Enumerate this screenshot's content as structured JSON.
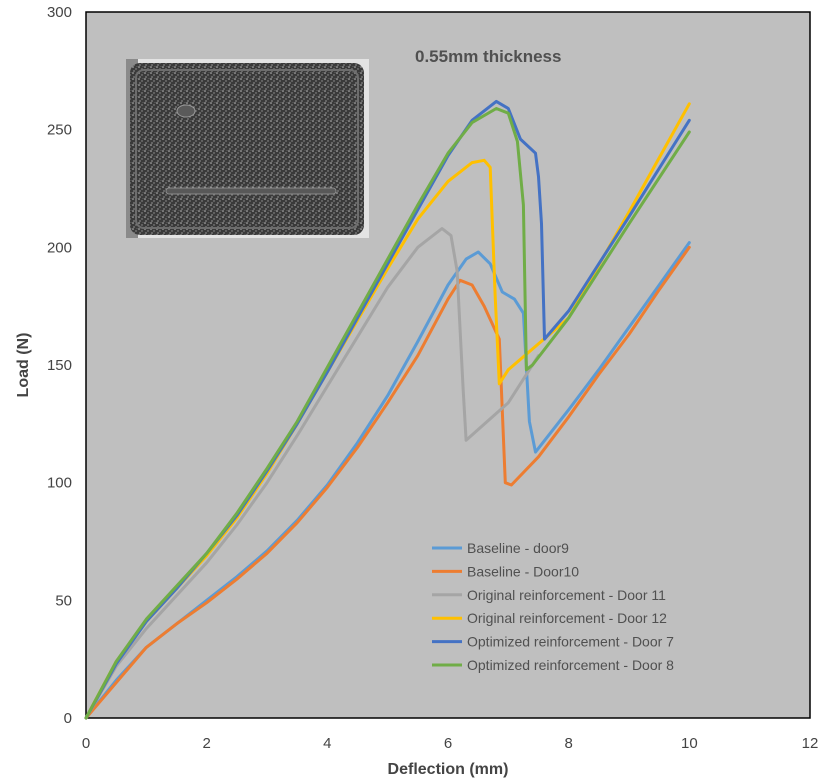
{
  "chart_data": {
    "type": "line",
    "title": "",
    "annotation": "0.55mm thickness",
    "xlabel": "Deflection (mm)",
    "ylabel": "Load (N)",
    "xlim": [
      0,
      12
    ],
    "ylim": [
      0,
      300
    ],
    "xticks": [
      0,
      2,
      4,
      6,
      8,
      10,
      12
    ],
    "yticks": [
      0,
      50,
      100,
      150,
      200,
      250,
      300
    ],
    "grid": false,
    "legend_position": "lower-right",
    "plot_background": "#bfbfbf",
    "inset_image": "photo of a perforated metal door panel (top-left)",
    "series": [
      {
        "name": "Baseline - door9",
        "color": "#5b9bd5",
        "points": [
          [
            0,
            0
          ],
          [
            0.5,
            16
          ],
          [
            1,
            30
          ],
          [
            1.5,
            40
          ],
          [
            2,
            50
          ],
          [
            2.5,
            60
          ],
          [
            3,
            71
          ],
          [
            3.5,
            84
          ],
          [
            4,
            99
          ],
          [
            4.5,
            117
          ],
          [
            5,
            137
          ],
          [
            5.5,
            160
          ],
          [
            6,
            184
          ],
          [
            6.3,
            195
          ],
          [
            6.5,
            198
          ],
          [
            6.7,
            193
          ],
          [
            6.9,
            181
          ],
          [
            7.1,
            178
          ],
          [
            7.25,
            172
          ],
          [
            7.35,
            126
          ],
          [
            7.45,
            113
          ],
          [
            8,
            131
          ],
          [
            8.5,
            148
          ],
          [
            9,
            166
          ],
          [
            9.5,
            184
          ],
          [
            10,
            202
          ]
        ]
      },
      {
        "name": "Baseline - Door10",
        "color": "#ed7d31",
        "points": [
          [
            0,
            0
          ],
          [
            0.5,
            15
          ],
          [
            1,
            30
          ],
          [
            1.5,
            40
          ],
          [
            2,
            49
          ],
          [
            2.5,
            59
          ],
          [
            3,
            70
          ],
          [
            3.5,
            83
          ],
          [
            4,
            98
          ],
          [
            4.5,
            115
          ],
          [
            5,
            134
          ],
          [
            5.5,
            154
          ],
          [
            6,
            178
          ],
          [
            6.2,
            186
          ],
          [
            6.4,
            184
          ],
          [
            6.6,
            175
          ],
          [
            6.85,
            161
          ],
          [
            6.95,
            100
          ],
          [
            7.05,
            99
          ],
          [
            7.5,
            111
          ],
          [
            8,
            128
          ],
          [
            8.5,
            146
          ],
          [
            9,
            163
          ],
          [
            9.5,
            182
          ],
          [
            10,
            200
          ]
        ]
      },
      {
        "name": "Original reinforcement - Door 11",
        "color": "#a5a5a5",
        "points": [
          [
            0,
            0
          ],
          [
            0.5,
            22
          ],
          [
            1,
            38
          ],
          [
            1.5,
            52
          ],
          [
            2,
            66
          ],
          [
            2.5,
            82
          ],
          [
            3,
            100
          ],
          [
            3.5,
            120
          ],
          [
            4,
            141
          ],
          [
            4.5,
            162
          ],
          [
            5,
            183
          ],
          [
            5.5,
            200
          ],
          [
            5.9,
            208
          ],
          [
            6.05,
            205
          ],
          [
            6.15,
            190
          ],
          [
            6.25,
            140
          ],
          [
            6.3,
            118
          ],
          [
            7,
            134
          ],
          [
            7.5,
            154
          ]
        ]
      },
      {
        "name": "Original reinforcement - Door 12",
        "color": "#ffc000",
        "points": [
          [
            0,
            0
          ],
          [
            0.5,
            24
          ],
          [
            1,
            41
          ],
          [
            1.5,
            55
          ],
          [
            2,
            69
          ],
          [
            2.5,
            85
          ],
          [
            3,
            104
          ],
          [
            3.5,
            125
          ],
          [
            4,
            147
          ],
          [
            4.5,
            169
          ],
          [
            5,
            191
          ],
          [
            5.5,
            212
          ],
          [
            6,
            228
          ],
          [
            6.4,
            236
          ],
          [
            6.6,
            237
          ],
          [
            6.7,
            234
          ],
          [
            6.78,
            180
          ],
          [
            6.85,
            142
          ],
          [
            7,
            148
          ],
          [
            8,
            170
          ],
          [
            9,
            215
          ],
          [
            10,
            261
          ]
        ]
      },
      {
        "name": "Optimized reinforcement - Door 7",
        "color": "#4472c4",
        "points": [
          [
            0,
            0
          ],
          [
            0.5,
            23
          ],
          [
            1,
            41
          ],
          [
            1.5,
            55
          ],
          [
            2,
            70
          ],
          [
            2.5,
            86
          ],
          [
            3,
            105
          ],
          [
            3.5,
            125
          ],
          [
            4,
            147
          ],
          [
            4.5,
            170
          ],
          [
            5,
            193
          ],
          [
            5.5,
            216
          ],
          [
            6,
            239
          ],
          [
            6.4,
            254
          ],
          [
            6.8,
            262
          ],
          [
            7,
            259
          ],
          [
            7.2,
            246
          ],
          [
            7.45,
            240
          ],
          [
            7.5,
            230
          ],
          [
            7.55,
            210
          ],
          [
            7.6,
            161
          ],
          [
            8,
            173
          ],
          [
            9,
            213
          ],
          [
            10,
            254
          ]
        ]
      },
      {
        "name": "Optimized reinforcement - Door 8",
        "color": "#70ad47",
        "points": [
          [
            0,
            0
          ],
          [
            0.5,
            24
          ],
          [
            1,
            42
          ],
          [
            1.5,
            56
          ],
          [
            2,
            70
          ],
          [
            2.5,
            87
          ],
          [
            3,
            106
          ],
          [
            3.5,
            126
          ],
          [
            4,
            149
          ],
          [
            4.5,
            172
          ],
          [
            5,
            195
          ],
          [
            5.5,
            218
          ],
          [
            6,
            240
          ],
          [
            6.4,
            253
          ],
          [
            6.8,
            259
          ],
          [
            7,
            257
          ],
          [
            7.15,
            245
          ],
          [
            7.25,
            218
          ],
          [
            7.3,
            148
          ],
          [
            7.4,
            150
          ],
          [
            8,
            170
          ],
          [
            9,
            210
          ],
          [
            10,
            249
          ]
        ]
      }
    ]
  }
}
